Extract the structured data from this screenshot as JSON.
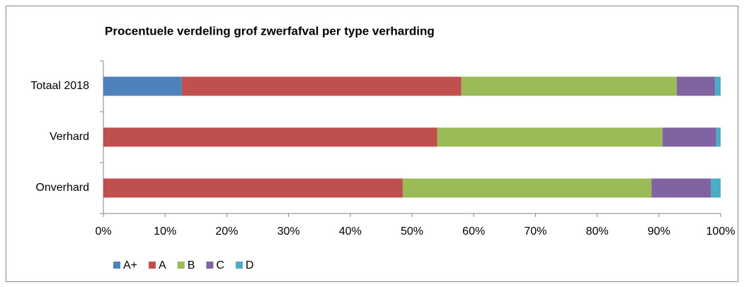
{
  "chart_data": {
    "type": "stacked-barh",
    "title": "Procentuele verdeling grof zwerfafval per type verharding",
    "categories": [
      "Totaal 2018",
      "Verhard",
      "Onverhard"
    ],
    "series": [
      {
        "name": "A+",
        "color": "#4f81bd",
        "values": [
          12.7,
          0,
          0
        ]
      },
      {
        "name": "A",
        "color": "#c0504d",
        "values": [
          45.3,
          54.1,
          48.5
        ]
      },
      {
        "name": "B",
        "color": "#9bbb59",
        "values": [
          34.9,
          36.5,
          40.3
        ]
      },
      {
        "name": "C",
        "color": "#8064a2",
        "values": [
          6.2,
          8.7,
          9.6
        ]
      },
      {
        "name": "D",
        "color": "#4bacc6",
        "values": [
          0.9,
          0.7,
          1.6
        ]
      }
    ],
    "xlim": [
      0,
      100
    ],
    "xticks": [
      {
        "value": 0,
        "label": "0%"
      },
      {
        "value": 10,
        "label": "10%"
      },
      {
        "value": 20,
        "label": "20%"
      },
      {
        "value": 30,
        "label": "30%"
      },
      {
        "value": 40,
        "label": "40%"
      },
      {
        "value": 50,
        "label": "50%"
      },
      {
        "value": 60,
        "label": "60%"
      },
      {
        "value": 70,
        "label": "70%"
      },
      {
        "value": 80,
        "label": "80%"
      },
      {
        "value": 90,
        "label": "90%"
      },
      {
        "value": 100,
        "label": "100%"
      }
    ],
    "legend": "bottom-left"
  }
}
